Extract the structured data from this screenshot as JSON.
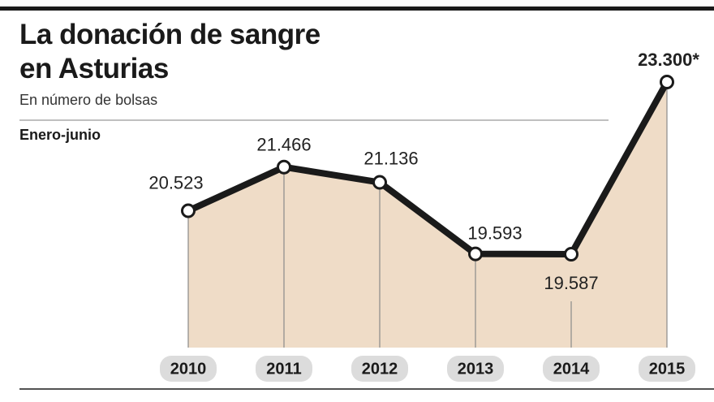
{
  "chart_data": {
    "type": "line",
    "title": "La donación de sangre en Asturias",
    "subtitle": "En número de bolsas",
    "period_label": "Enero-junio",
    "categories": [
      "2010",
      "2011",
      "2012",
      "2013",
      "2014",
      "2015"
    ],
    "values": [
      20523,
      21466,
      21136,
      19593,
      19587,
      23300
    ],
    "value_labels": [
      "20.523",
      "21.466",
      "21.136",
      "19.593",
      "19.587",
      "23.300*"
    ],
    "color": "#1a1a1a",
    "area_color": "#efdcc7"
  }
}
